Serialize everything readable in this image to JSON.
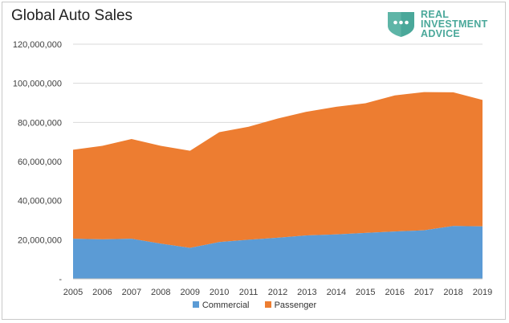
{
  "title": "Global Auto Sales",
  "logo": {
    "line1": "REAL",
    "line2": "INVESTMENT",
    "line3": "ADVICE"
  },
  "colors": {
    "commercial": "#5b9bd5",
    "passenger": "#ed7d31",
    "logo": "#4aa89a"
  },
  "chart_data": {
    "type": "area",
    "stacked": true,
    "title": "Global Auto Sales",
    "x": [
      "2005",
      "2006",
      "2007",
      "2008",
      "2009",
      "2010",
      "2011",
      "2012",
      "2013",
      "2014",
      "2015",
      "2016",
      "2017",
      "2018",
      "2019"
    ],
    "ylim": [
      0,
      120000000
    ],
    "ytick_labels": [
      "-",
      "20,000,000",
      "40,000,000",
      "60,000,000",
      "80,000,000",
      "100,000,000",
      "120,000,000"
    ],
    "grid": true,
    "legend_position": "bottom",
    "series": [
      {
        "name": "Commercial",
        "values": [
          20500000,
          20200000,
          20500000,
          18000000,
          15800000,
          18800000,
          20000000,
          21000000,
          22200000,
          22700000,
          23500000,
          24200000,
          24800000,
          27000000,
          26800000
        ]
      },
      {
        "name": "Passenger",
        "values": [
          45500000,
          47800000,
          51000000,
          50000000,
          49700000,
          56200000,
          57800000,
          61000000,
          63300000,
          65300000,
          66300000,
          69600000,
          70700000,
          68400000,
          64700000
        ]
      }
    ]
  }
}
